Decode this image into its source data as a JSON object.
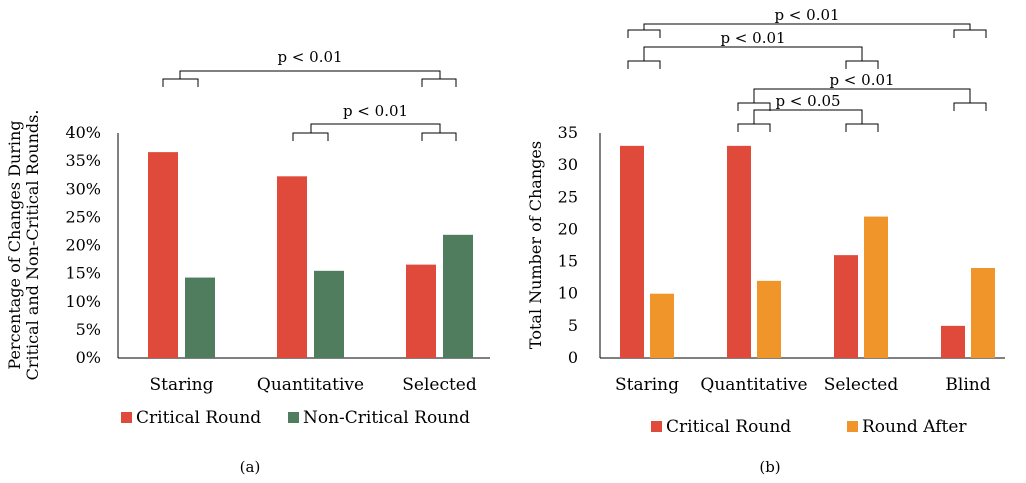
{
  "chart_data": [
    {
      "type": "bar",
      "caption": "(a)",
      "ylabel": [
        "Percentage of Changes During",
        "Critical and Non-Critical Rounds."
      ],
      "categories": [
        "Staring",
        "Quantitative",
        "Selected"
      ],
      "yticks": [
        "0%",
        "5%",
        "10%",
        "15%",
        "20%",
        "25%",
        "30%",
        "35%",
        "40%"
      ],
      "ylim": [
        0,
        40
      ],
      "series": [
        {
          "name": "Critical Round",
          "color": "#e04a3a",
          "values": [
            36.6,
            32.3,
            16.6
          ]
        },
        {
          "name": "Non-Critical Round",
          "color": "#507d5d",
          "values": [
            14.3,
            15.5,
            21.9
          ]
        }
      ],
      "legend_labels": [
        "Critical Round",
        "Non-Critical Round"
      ],
      "significance": [
        {
          "label": "p < 0.01",
          "from": "Staring",
          "to": "Selected"
        },
        {
          "label": "p < 0.01",
          "from": "Quantitative",
          "to": "Selected"
        }
      ]
    },
    {
      "type": "bar",
      "caption": "(b)",
      "ylabel": [
        "Total Number of Changes"
      ],
      "categories": [
        "Staring",
        "Quantitative",
        "Selected",
        "Blind"
      ],
      "yticks": [
        "0",
        "5",
        "10",
        "15",
        "20",
        "25",
        "30",
        "35"
      ],
      "ylim": [
        0,
        35
      ],
      "series": [
        {
          "name": "Critical Round",
          "color": "#e04a3a",
          "values": [
            33,
            33,
            16,
            5
          ]
        },
        {
          "name": "Round After",
          "color": "#f0952a",
          "values": [
            10,
            12,
            22,
            14
          ]
        }
      ],
      "legend_labels": [
        "Critical Round",
        "Round After"
      ],
      "significance": [
        {
          "label": "p < 0.01",
          "from": "Staring",
          "to": "Blind"
        },
        {
          "label": "p < 0.01",
          "from": "Staring",
          "to": "Selected"
        },
        {
          "label": "p < 0.01",
          "from": "Quantitative",
          "to": "Blind"
        },
        {
          "label": "p < 0.05",
          "from": "Quantitative",
          "to": "Selected"
        }
      ]
    }
  ]
}
